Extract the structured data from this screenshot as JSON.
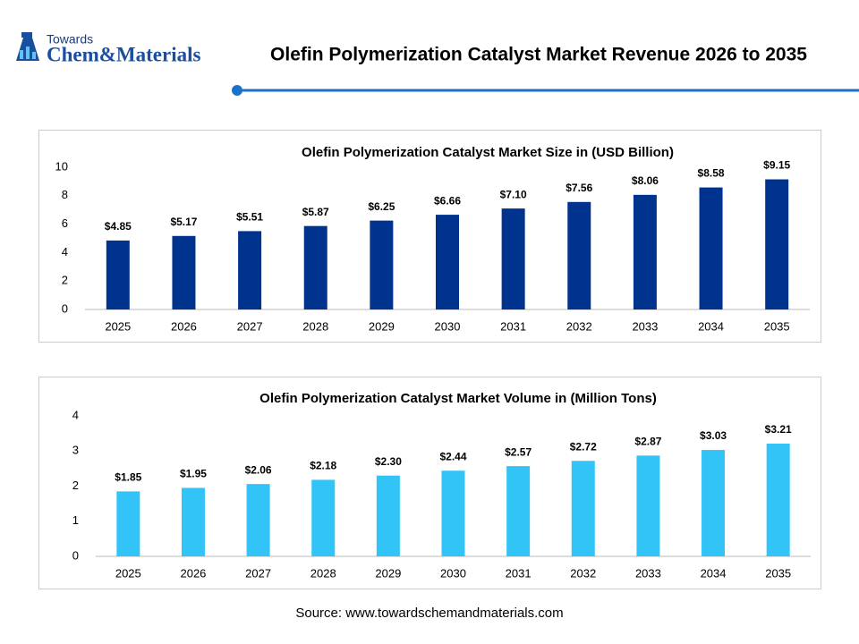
{
  "header": {
    "logo_top": "Towards",
    "logo_main": "Chem&Materials",
    "title": "Olefin Polymerization Catalyst Market Revenue 2026 to 2035"
  },
  "chart_data": [
    {
      "type": "bar",
      "title": "Olefin Polymerization Catalyst Market Size in (USD Billion)",
      "categories": [
        "2025",
        "2026",
        "2027",
        "2028",
        "2029",
        "2030",
        "2031",
        "2032",
        "2033",
        "2034",
        "2035"
      ],
      "values": [
        4.85,
        5.17,
        5.51,
        5.87,
        6.25,
        6.66,
        7.1,
        7.56,
        8.06,
        8.58,
        9.15
      ],
      "value_labels": [
        "$4.85",
        "$5.17",
        "$5.51",
        "$5.87",
        "$6.25",
        "$6.66",
        "$7.10",
        "$7.56",
        "$8.06",
        "$8.58",
        "$9.15"
      ],
      "color": "#00338d",
      "ylim": [
        0,
        10
      ],
      "yticks": [
        0,
        2,
        4,
        6,
        8,
        10
      ],
      "grid": false
    },
    {
      "type": "bar",
      "title": "Olefin Polymerization Catalyst Market Volume in (Million Tons)",
      "categories": [
        "2025",
        "2026",
        "2027",
        "2028",
        "2029",
        "2030",
        "2031",
        "2032",
        "2033",
        "2034",
        "2035"
      ],
      "values": [
        1.85,
        1.95,
        2.06,
        2.18,
        2.3,
        2.44,
        2.57,
        2.72,
        2.87,
        3.03,
        3.21
      ],
      "value_labels": [
        "$1.85",
        "$1.95",
        "$2.06",
        "$2.18",
        "$2.30",
        "$2.44",
        "$2.57",
        "$2.72",
        "$2.87",
        "$3.03",
        "$3.21"
      ],
      "color": "#33c4f7",
      "ylim": [
        0,
        4
      ],
      "yticks": [
        0,
        1,
        2,
        3,
        4
      ],
      "grid": false
    }
  ],
  "source": "Source: www.towardschemandmaterials.com"
}
